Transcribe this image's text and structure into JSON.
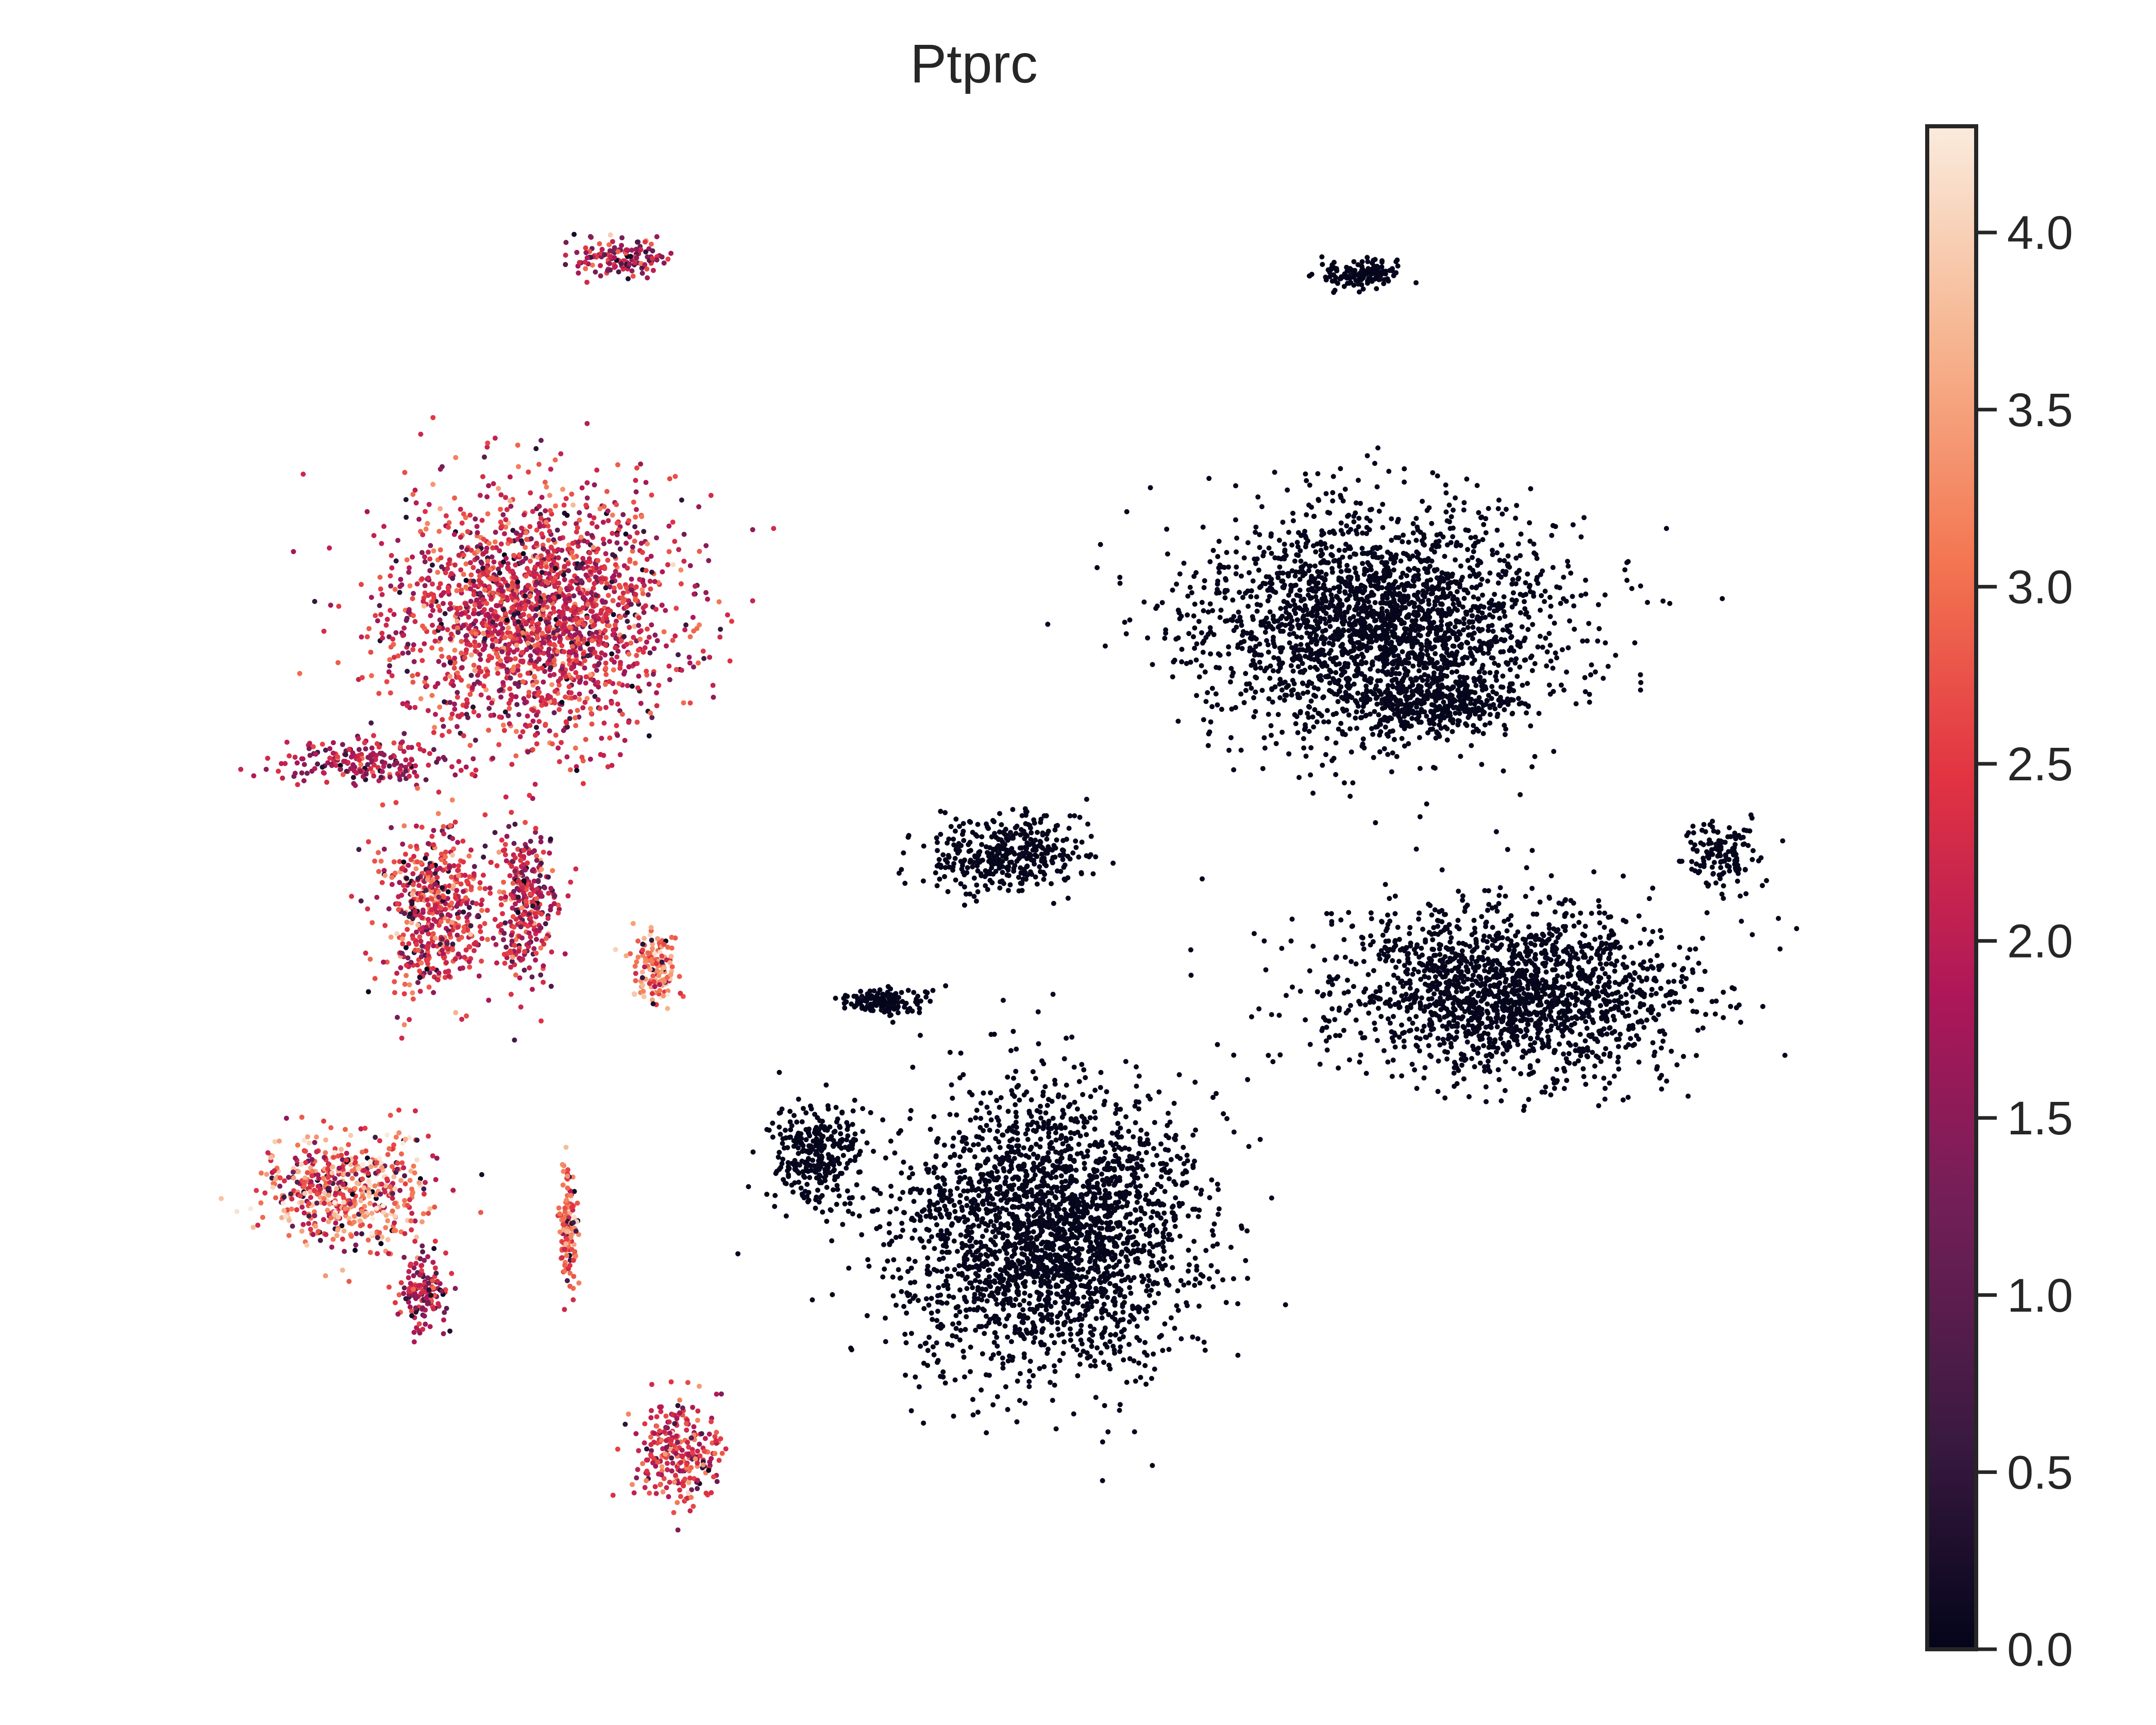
{
  "chart_data": {
    "type": "scatter",
    "title": "Ptprc",
    "xlabel": "",
    "ylabel": "",
    "colormap": "rocket",
    "colormap_stops": [
      "#03051a",
      "#3c1a42",
      "#701f57",
      "#ad1759",
      "#e13342",
      "#f37651",
      "#f6b48f",
      "#faebdd"
    ],
    "colorbar": {
      "label": "",
      "min": 0.0,
      "max": 4.3,
      "ticks": [
        0.0,
        0.5,
        1.0,
        1.5,
        2.0,
        2.5,
        3.0,
        3.5,
        4.0
      ],
      "tick_labels": [
        "0.0",
        "0.5",
        "1.0",
        "1.5",
        "2.0",
        "2.5",
        "3.0",
        "3.5",
        "4.0"
      ]
    },
    "axes": {
      "frame": false,
      "grid": false,
      "ticks": false
    },
    "clusters": [
      {
        "id": "left-main",
        "x": 3.0,
        "y": 6.6,
        "sx": 0.75,
        "sy": 0.65,
        "expr": 2.2,
        "spread": 0.6
      },
      {
        "id": "left-arm",
        "x": 2.0,
        "y": 5.75,
        "sx": 0.45,
        "sy": 0.1,
        "expr": 1.8,
        "spread": 0.5
      },
      {
        "id": "left-lower",
        "x": 2.4,
        "y": 4.9,
        "sx": 0.28,
        "sy": 0.45,
        "expr": 2.4,
        "spread": 0.6
      },
      {
        "id": "left-tail",
        "x": 2.95,
        "y": 4.9,
        "sx": 0.18,
        "sy": 0.4,
        "expr": 2.0,
        "spread": 0.6
      },
      {
        "id": "left-hot-spot",
        "x": 3.7,
        "y": 4.55,
        "sx": 0.12,
        "sy": 0.2,
        "expr": 3.1,
        "spread": 0.6
      },
      {
        "id": "bottom-left",
        "x": 1.9,
        "y": 3.25,
        "sx": 0.45,
        "sy": 0.3,
        "expr": 2.9,
        "spread": 0.8
      },
      {
        "id": "bottom-left-tail",
        "x": 2.35,
        "y": 2.65,
        "sx": 0.12,
        "sy": 0.22,
        "expr": 1.9,
        "spread": 0.6
      },
      {
        "id": "small-streak",
        "x": 3.2,
        "y": 3.05,
        "sx": 0.05,
        "sy": 0.28,
        "expr": 3.0,
        "spread": 0.5
      },
      {
        "id": "top-small",
        "x": 3.5,
        "y": 8.7,
        "sx": 0.25,
        "sy": 0.1,
        "expr": 2.0,
        "spread": 0.7
      },
      {
        "id": "bottom-small",
        "x": 3.85,
        "y": 1.7,
        "sx": 0.22,
        "sy": 0.28,
        "expr": 2.4,
        "spread": 0.6
      },
      {
        "id": "right-top",
        "x": 7.95,
        "y": 6.55,
        "sx": 0.95,
        "sy": 0.6,
        "expr": 0.0,
        "spread": 0.05
      },
      {
        "id": "right-top-arm",
        "x": 8.3,
        "y": 6.1,
        "sx": 0.45,
        "sy": 0.15,
        "expr": 0.0,
        "spread": 0.05
      },
      {
        "id": "right-mid",
        "x": 8.7,
        "y": 4.4,
        "sx": 0.95,
        "sy": 0.45,
        "expr": 0.0,
        "spread": 0.05
      },
      {
        "id": "center-bottom",
        "x": 6.0,
        "y": 3.0,
        "sx": 0.8,
        "sy": 0.75,
        "expr": 0.0,
        "spread": 0.05
      },
      {
        "id": "center-left",
        "x": 5.75,
        "y": 5.2,
        "sx": 0.45,
        "sy": 0.2,
        "expr": 0.0,
        "spread": 0.05
      },
      {
        "id": "center-small",
        "x": 5.05,
        "y": 4.35,
        "sx": 0.2,
        "sy": 0.07,
        "expr": 0.0,
        "spread": 0.05
      },
      {
        "id": "mid-small",
        "x": 4.65,
        "y": 3.45,
        "sx": 0.24,
        "sy": 0.3,
        "expr": 0.0,
        "spread": 0.05
      },
      {
        "id": "far-right",
        "x": 9.95,
        "y": 5.2,
        "sx": 0.18,
        "sy": 0.18,
        "expr": 0.0,
        "spread": 0.05
      },
      {
        "id": "top-right-small",
        "x": 7.85,
        "y": 8.6,
        "sx": 0.22,
        "sy": 0.08,
        "expr": 0.0,
        "spread": 0.05
      }
    ],
    "xlim": [
      0.5,
      10.8
    ],
    "ylim": [
      0.8,
      9.3
    ]
  }
}
